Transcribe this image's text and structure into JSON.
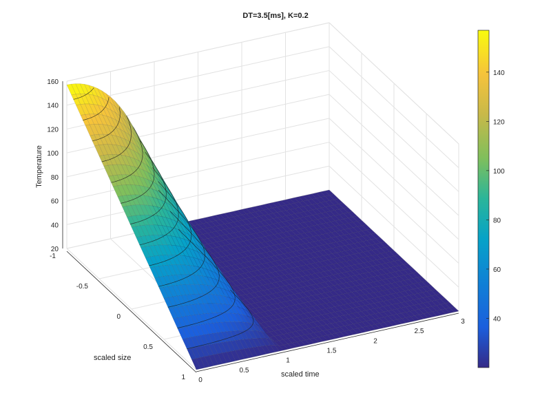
{
  "chart_data": {
    "type": "surface",
    "title": "DT=3.5[ms], K=0.2",
    "xlabel": "scaled time",
    "ylabel": "scaled size",
    "zlabel": "Temperature",
    "xlim": [
      0,
      3
    ],
    "ylim": [
      -1,
      1
    ],
    "zlim": [
      20,
      160
    ],
    "x_ticks": [
      "0",
      "0.5",
      "1",
      "1.5",
      "2",
      "2.5",
      "3"
    ],
    "y_ticks": [
      "-1",
      "-0.5",
      "0",
      "0.5",
      "1"
    ],
    "z_ticks": [
      "20",
      "40",
      "60",
      "80",
      "100",
      "120",
      "140",
      "160"
    ],
    "colormap": "parula",
    "colorbar": {
      "range": [
        20,
        157
      ],
      "ticks": [
        "40",
        "60",
        "80",
        "100",
        "120",
        "140"
      ],
      "placement": "right"
    },
    "grid": true,
    "surface": {
      "description_values": {
        "base_temperature": 20,
        "peak_temperature": 157,
        "pulse_end_time": 1.0,
        "profile_across_size": "parabolic, maximum at scaled size -1, zero at scaled size 1"
      }
    },
    "contour_levels": [
      30,
      40,
      50,
      60,
      70,
      80,
      90,
      100,
      110,
      120,
      130,
      140,
      150
    ]
  }
}
